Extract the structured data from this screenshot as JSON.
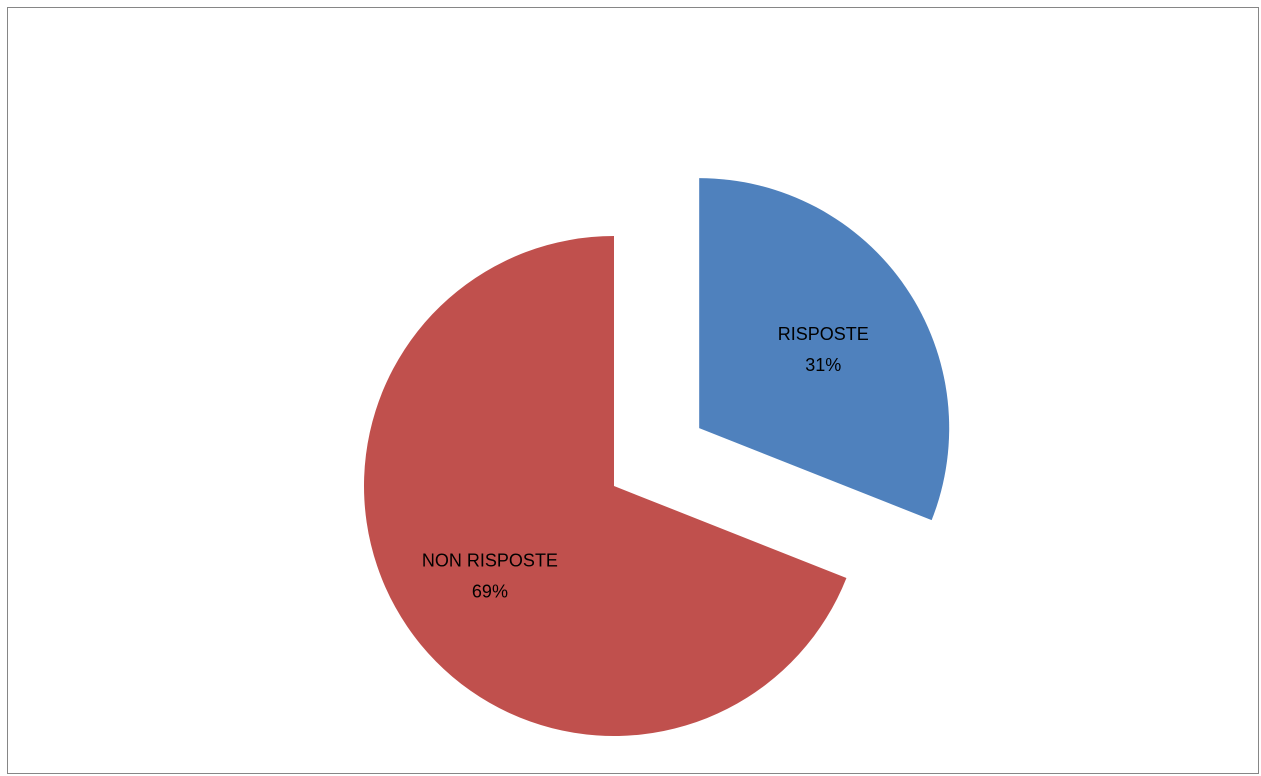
{
  "chart_data": {
    "type": "pie",
    "title": "",
    "legend": "none",
    "slices": [
      {
        "label": "RISPOSTE",
        "value": 31,
        "percent_label": "31%",
        "color": "#4F81BD",
        "exploded": true
      },
      {
        "label": "NON RISPOSTE",
        "value": 69,
        "percent_label": "69%",
        "color": "#C0504D",
        "exploded": false
      }
    ]
  }
}
